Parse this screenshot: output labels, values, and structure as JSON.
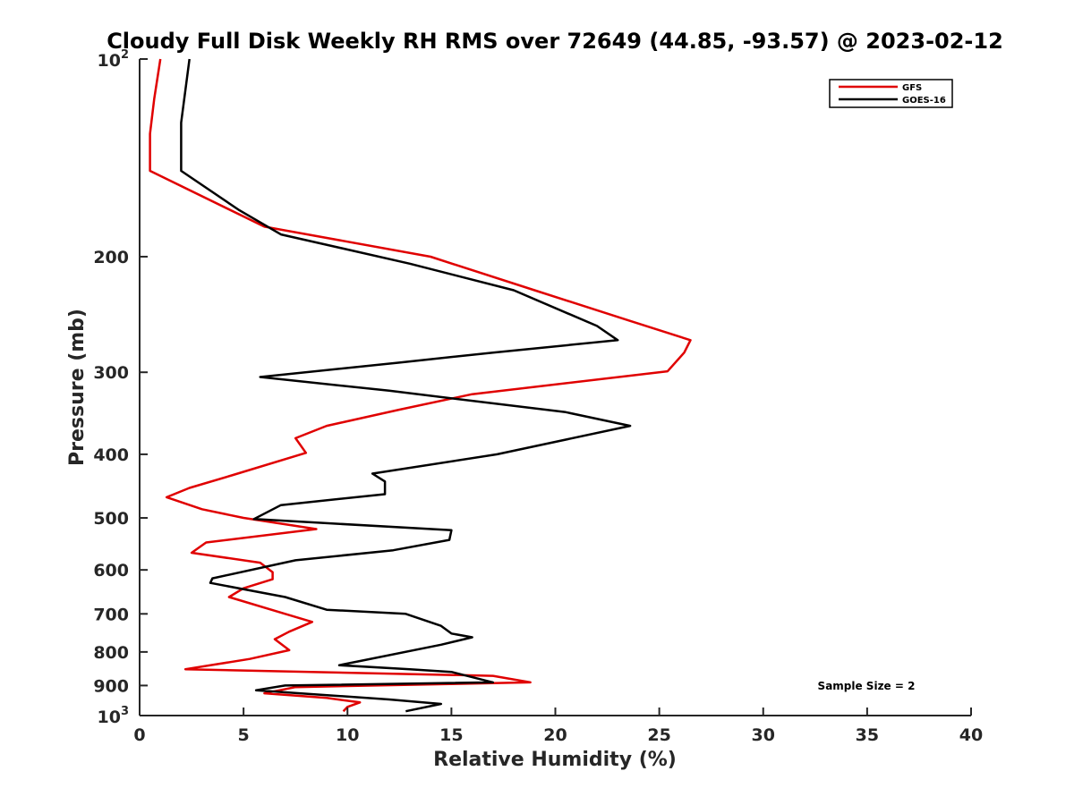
{
  "chart_data": {
    "type": "line",
    "title": "Cloudy Full Disk Weekly RH RMS over 72649 (44.85, -93.57) @ 2023-02-12",
    "xlabel": "Relative Humidity (%)",
    "ylabel": "Pressure (mb)",
    "xlim": [
      0,
      40
    ],
    "ylim": [
      100,
      1000
    ],
    "yscale": "log",
    "y_reversed": true,
    "grid": false,
    "x_ticks": [
      "0",
      "5",
      "10",
      "15",
      "20",
      "25",
      "30",
      "35",
      "40"
    ],
    "y_ticks": [
      {
        "value": 100,
        "base": "10",
        "exp": "2"
      },
      {
        "value": 200,
        "label": "200"
      },
      {
        "value": 300,
        "label": "300"
      },
      {
        "value": 400,
        "label": "400"
      },
      {
        "value": 500,
        "label": "500"
      },
      {
        "value": 600,
        "label": "600"
      },
      {
        "value": 700,
        "label": "700"
      },
      {
        "value": 800,
        "label": "800"
      },
      {
        "value": 900,
        "label": "900"
      },
      {
        "value": 1000,
        "base": "10",
        "exp": "3"
      }
    ],
    "legend_position": "top-right",
    "annotation": "Sample Size = 2",
    "series": [
      {
        "name": "GFS",
        "color": "#e00000",
        "points": [
          [
            1.0,
            100
          ],
          [
            0.7,
            115
          ],
          [
            0.5,
            130
          ],
          [
            0.5,
            148
          ],
          [
            6.0,
            180
          ],
          [
            14.0,
            200
          ],
          [
            19.0,
            225
          ],
          [
            23.5,
            250
          ],
          [
            26.5,
            268
          ],
          [
            26.2,
            280
          ],
          [
            25.4,
            299
          ],
          [
            16.0,
            324
          ],
          [
            12.5,
            342
          ],
          [
            9.0,
            362
          ],
          [
            7.5,
            378
          ],
          [
            8.0,
            398
          ],
          [
            4.5,
            430
          ],
          [
            2.4,
            450
          ],
          [
            1.3,
            465
          ],
          [
            3.0,
            485
          ],
          [
            5.0,
            500
          ],
          [
            8.5,
            520
          ],
          [
            3.2,
            545
          ],
          [
            2.5,
            565
          ],
          [
            5.8,
            585
          ],
          [
            6.4,
            605
          ],
          [
            6.4,
            620
          ],
          [
            5.0,
            640
          ],
          [
            4.3,
            660
          ],
          [
            7.0,
            700
          ],
          [
            8.3,
            720
          ],
          [
            7.2,
            745
          ],
          [
            6.5,
            765
          ],
          [
            7.2,
            795
          ],
          [
            5.3,
            820
          ],
          [
            2.2,
            850
          ],
          [
            17.0,
            870
          ],
          [
            18.8,
            890
          ],
          [
            7.5,
            905
          ],
          [
            6.0,
            925
          ],
          [
            9.0,
            940
          ],
          [
            10.6,
            955
          ],
          [
            10.0,
            970
          ],
          [
            9.8,
            985
          ]
        ]
      },
      {
        "name": "GOES-16",
        "color": "#000000",
        "points": [
          [
            2.4,
            100
          ],
          [
            2.0,
            125
          ],
          [
            2.0,
            148
          ],
          [
            4.8,
            170
          ],
          [
            6.8,
            185
          ],
          [
            13.0,
            205
          ],
          [
            18.0,
            225
          ],
          [
            22.0,
            255
          ],
          [
            23.0,
            268
          ],
          [
            17.0,
            280
          ],
          [
            12.5,
            290
          ],
          [
            5.8,
            305
          ],
          [
            12.0,
            320
          ],
          [
            20.5,
            345
          ],
          [
            23.6,
            362
          ],
          [
            17.2,
            400
          ],
          [
            11.2,
            428
          ],
          [
            11.8,
            440
          ],
          [
            11.8,
            460
          ],
          [
            6.8,
            478
          ],
          [
            5.5,
            502
          ],
          [
            15.0,
            522
          ],
          [
            14.9,
            540
          ],
          [
            12.2,
            560
          ],
          [
            7.5,
            580
          ],
          [
            3.5,
            618
          ],
          [
            3.4,
            628
          ],
          [
            7.0,
            660
          ],
          [
            9.0,
            690
          ],
          [
            12.8,
            700
          ],
          [
            14.5,
            730
          ],
          [
            15.0,
            750
          ],
          [
            16.0,
            760
          ],
          [
            14.5,
            780
          ],
          [
            9.6,
            838
          ],
          [
            13.0,
            850
          ],
          [
            15.0,
            858
          ],
          [
            17.0,
            890
          ],
          [
            7.0,
            900
          ],
          [
            5.6,
            915
          ],
          [
            12.0,
            945
          ],
          [
            14.5,
            960
          ],
          [
            12.8,
            985
          ]
        ]
      }
    ]
  }
}
